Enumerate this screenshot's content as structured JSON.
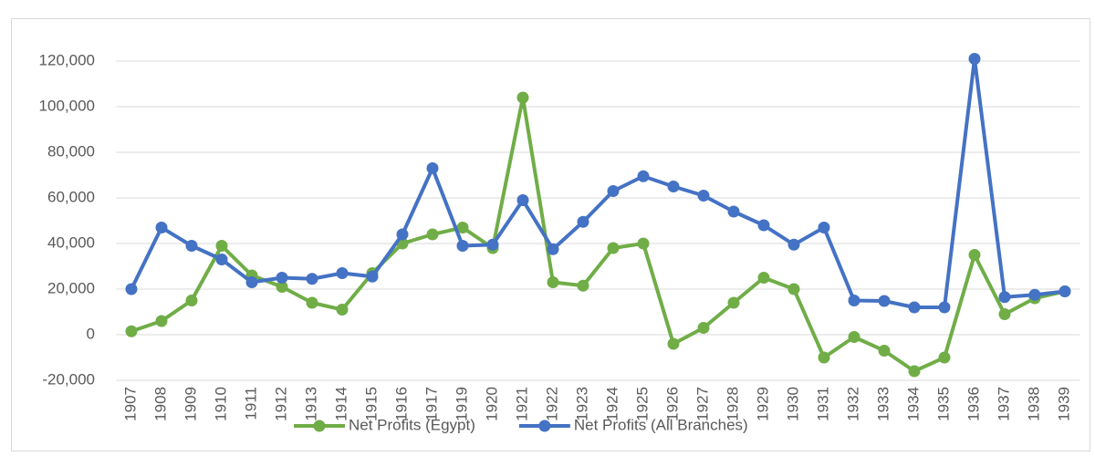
{
  "chart_data": {
    "type": "line",
    "categories": [
      "1907",
      "1908",
      "1909",
      "1910",
      "1911",
      "1912",
      "1913",
      "1914",
      "1915",
      "1916",
      "1917",
      "1919",
      "1920",
      "1921",
      "1922",
      "1923",
      "1924",
      "1925",
      "1926",
      "1927",
      "1928",
      "1929",
      "1930",
      "1931",
      "1932",
      "1933",
      "1934",
      "1935",
      "1936",
      "1937",
      "1938",
      "1939"
    ],
    "series": [
      {
        "name": "Net Profits (Egypt)",
        "color": "#70ad47",
        "values": [
          1500,
          6000,
          15000,
          39000,
          26000,
          21000,
          14000,
          11000,
          27000,
          40000,
          44000,
          47000,
          38000,
          104000,
          23000,
          21500,
          38000,
          40000,
          -4000,
          3000,
          14000,
          25000,
          20000,
          -10000,
          -1000,
          -7000,
          -16000,
          -10000,
          35000,
          9000,
          16000,
          19000
        ]
      },
      {
        "name": "Net Profits (All Branches)",
        "color": "#4472c4",
        "values": [
          20000,
          47000,
          39000,
          33000,
          23000,
          25000,
          24500,
          27000,
          25500,
          44000,
          73000,
          39000,
          39500,
          59000,
          37500,
          49500,
          63000,
          69500,
          65000,
          61000,
          54000,
          48000,
          39500,
          47000,
          15000,
          14800,
          12000,
          12000,
          121000,
          16500,
          17500,
          19000
        ]
      }
    ],
    "ylim": [
      -20000,
      130000
    ],
    "yticks": [
      {
        "value": -20000,
        "label": "-20,000"
      },
      0,
      {
        "value": 20000,
        "label": "20,000"
      },
      {
        "value": 40000,
        "label": "40,000"
      },
      {
        "value": 60000,
        "label": "60,000"
      },
      {
        "value": 80000,
        "label": "80,000"
      },
      {
        "value": 100000,
        "label": "100,000"
      },
      {
        "value": 120000,
        "label": "120,000"
      }
    ],
    "grid": true,
    "legend": "bottom"
  }
}
